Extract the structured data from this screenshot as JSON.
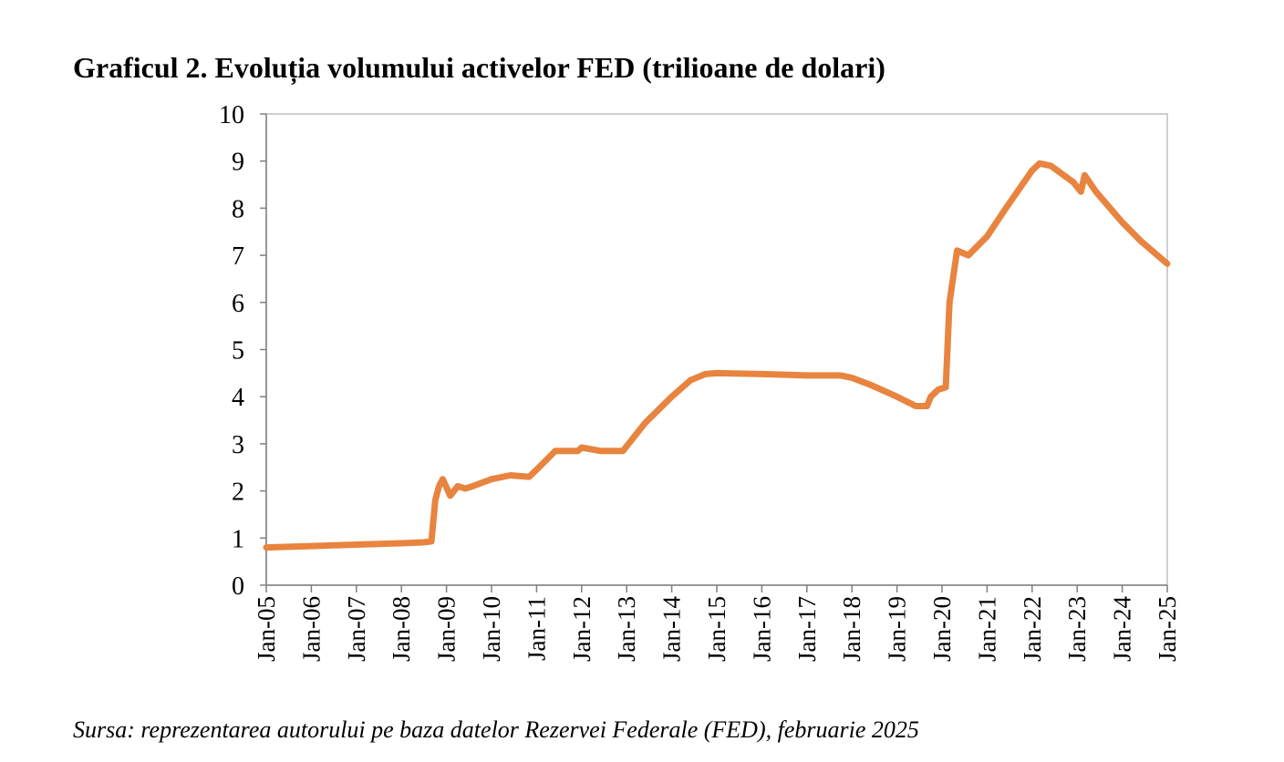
{
  "title": "Graficul 2. Evoluția volumului activelor FED (trilioane de dolari)",
  "source": "Sursa: reprezentarea autorului pe baza datelor Rezervei Federale (FED), februarie 2025",
  "colors": {
    "line": "#E8843F",
    "axis": "#808080",
    "frame": "#bfbfbf",
    "text": "#000000"
  },
  "chart_data": {
    "type": "line",
    "title": "Graficul 2. Evoluția volumului activelor FED (trilioane de dolari)",
    "xlabel": "",
    "ylabel": "",
    "ylim": [
      0,
      10
    ],
    "yticks": [
      "0",
      "1",
      "2",
      "3",
      "4",
      "5",
      "6",
      "7",
      "8",
      "9",
      "10"
    ],
    "xlim": [
      "2005-01",
      "2025-01"
    ],
    "xticks": [
      "Jan-05",
      "Jan-06",
      "Jan-07",
      "Jan-08",
      "Jan-09",
      "Jan-10",
      "Jan-11",
      "Jan-12",
      "Jan-13",
      "Jan-14",
      "Jan-15",
      "Jan-16",
      "Jan-17",
      "Jan-18",
      "Jan-19",
      "Jan-20",
      "Jan-21",
      "Jan-22",
      "Jan-23",
      "Jan-24",
      "Jan-25"
    ],
    "grid": false,
    "legend": "none",
    "series": [
      {
        "points": [
          [
            "2005-01",
            0.8
          ],
          [
            "2006-01",
            0.83
          ],
          [
            "2007-01",
            0.86
          ],
          [
            "2008-01",
            0.89
          ],
          [
            "2008-07",
            0.91
          ],
          [
            "2008-09",
            0.93
          ],
          [
            "2008-10",
            1.8
          ],
          [
            "2008-11",
            2.1
          ],
          [
            "2008-12",
            2.25
          ],
          [
            "2009-02",
            1.9
          ],
          [
            "2009-04",
            2.1
          ],
          [
            "2009-06",
            2.05
          ],
          [
            "2009-08",
            2.1
          ],
          [
            "2010-01",
            2.25
          ],
          [
            "2010-06",
            2.33
          ],
          [
            "2010-11",
            2.3
          ],
          [
            "2011-01",
            2.45
          ],
          [
            "2011-06",
            2.85
          ],
          [
            "2011-12",
            2.85
          ],
          [
            "2012-01",
            2.92
          ],
          [
            "2012-06",
            2.85
          ],
          [
            "2012-12",
            2.85
          ],
          [
            "2013-01",
            2.95
          ],
          [
            "2013-06",
            3.45
          ],
          [
            "2014-01",
            4.0
          ],
          [
            "2014-06",
            4.35
          ],
          [
            "2014-10",
            4.48
          ],
          [
            "2015-01",
            4.5
          ],
          [
            "2016-01",
            4.48
          ],
          [
            "2017-01",
            4.45
          ],
          [
            "2017-10",
            4.45
          ],
          [
            "2018-01",
            4.4
          ],
          [
            "2018-06",
            4.25
          ],
          [
            "2019-01",
            4.0
          ],
          [
            "2019-06",
            3.8
          ],
          [
            "2019-09",
            3.8
          ],
          [
            "2019-10",
            4.0
          ],
          [
            "2019-12",
            4.15
          ],
          [
            "2020-02",
            4.2
          ],
          [
            "2020-03",
            6.0
          ],
          [
            "2020-05",
            7.1
          ],
          [
            "2020-08",
            7.0
          ],
          [
            "2021-01",
            7.4
          ],
          [
            "2021-06",
            8.0
          ],
          [
            "2022-01",
            8.8
          ],
          [
            "2022-03",
            8.95
          ],
          [
            "2022-06",
            8.9
          ],
          [
            "2022-12",
            8.55
          ],
          [
            "2023-02",
            8.35
          ],
          [
            "2023-03",
            8.7
          ],
          [
            "2023-06",
            8.35
          ],
          [
            "2024-01",
            7.7
          ],
          [
            "2024-06",
            7.3
          ],
          [
            "2025-01",
            6.82
          ]
        ]
      }
    ]
  }
}
